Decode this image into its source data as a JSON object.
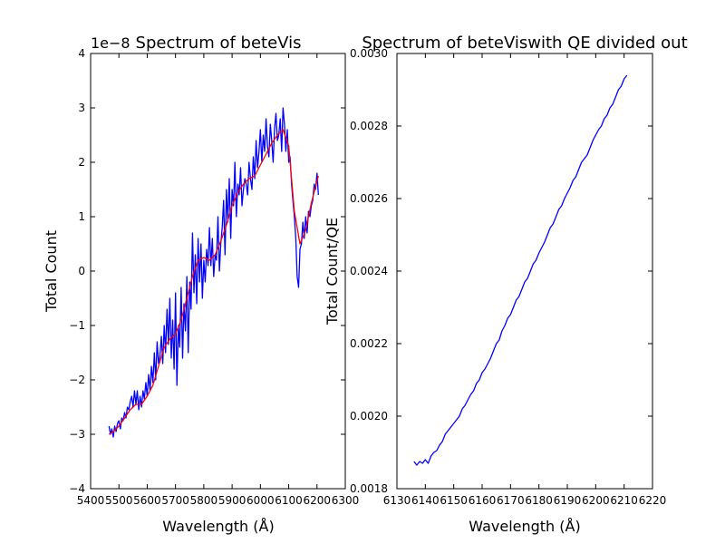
{
  "chart_data": [
    {
      "type": "line",
      "title": "Spectrum of beteVis",
      "xlabel": "Wavelength (Å)",
      "ylabel": "Total Count",
      "offset_label": "1e−8",
      "xlim": [
        5400,
        6300
      ],
      "ylim": [
        -4,
        4
      ],
      "x_ticks": [
        5400,
        5500,
        5600,
        5700,
        5800,
        5900,
        6000,
        6100,
        6200,
        6300
      ],
      "y_ticks": [
        -4,
        -3,
        -2,
        -1,
        0,
        1,
        2,
        3,
        4
      ],
      "y_tick_labels": [
        "−4",
        "−3",
        "−2",
        "−1",
        "0",
        "1",
        "2",
        "3",
        "4"
      ],
      "series": [
        {
          "color": "#0000ff",
          "x": [
            5465,
            5470,
            5475,
            5480,
            5485,
            5490,
            5495,
            5500,
            5505,
            5510,
            5515,
            5520,
            5525,
            5530,
            5535,
            5540,
            5545,
            5550,
            5555,
            5560,
            5565,
            5570,
            5575,
            5580,
            5585,
            5590,
            5595,
            5600,
            5605,
            5610,
            5615,
            5620,
            5625,
            5630,
            5635,
            5640,
            5645,
            5650,
            5655,
            5660,
            5665,
            5670,
            5675,
            5680,
            5685,
            5690,
            5695,
            5700,
            5705,
            5710,
            5715,
            5720,
            5725,
            5730,
            5735,
            5740,
            5745,
            5750,
            5755,
            5760,
            5765,
            5770,
            5775,
            5780,
            5785,
            5790,
            5795,
            5800,
            5805,
            5810,
            5815,
            5820,
            5825,
            5830,
            5835,
            5840,
            5845,
            5850,
            5855,
            5860,
            5865,
            5870,
            5875,
            5880,
            5885,
            5890,
            5895,
            5900,
            5905,
            5910,
            5915,
            5920,
            5925,
            5930,
            5935,
            5940,
            5945,
            5950,
            5955,
            5960,
            5965,
            5970,
            5975,
            5980,
            5985,
            5990,
            5995,
            6000,
            6005,
            6010,
            6015,
            6020,
            6025,
            6030,
            6035,
            6040,
            6045,
            6050,
            6055,
            6060,
            6065,
            6070,
            6075,
            6080,
            6085,
            6090,
            6095,
            6100,
            6105,
            6110,
            6115,
            6120,
            6125,
            6130,
            6135,
            6140,
            6145,
            6150,
            6155,
            6160,
            6165,
            6170,
            6175,
            6180,
            6185,
            6190,
            6195,
            6200,
            6205
          ],
          "values": [
            -2.85,
            -3.0,
            -2.9,
            -3.05,
            -2.85,
            -2.95,
            -2.8,
            -2.75,
            -2.9,
            -2.7,
            -2.75,
            -2.6,
            -2.7,
            -2.5,
            -2.55,
            -2.4,
            -2.3,
            -2.5,
            -2.2,
            -2.45,
            -2.2,
            -2.55,
            -2.3,
            -2.5,
            -2.2,
            -2.35,
            -2.05,
            -2.3,
            -1.9,
            -2.2,
            -1.75,
            -2.05,
            -1.5,
            -2.0,
            -1.3,
            -1.7,
            -1.55,
            -1.2,
            -1.7,
            -1.0,
            -1.5,
            -0.7,
            -1.35,
            -0.5,
            -1.6,
            -0.9,
            -1.8,
            -0.4,
            -2.1,
            -1.0,
            -1.4,
            -0.3,
            -1.6,
            -0.6,
            -1.1,
            -0.1,
            -1.5,
            -0.2,
            -0.7,
            0.7,
            -0.4,
            0.3,
            -0.6,
            0.6,
            -0.2,
            0.5,
            -0.5,
            0.2,
            -0.2,
            0.4,
            0.1,
            0.8,
            0.1,
            0.6,
            -0.1,
            0.3,
            0.2,
            1.0,
            0.0,
            0.5,
            0.8,
            1.3,
            0.3,
            1.5,
            0.9,
            1.7,
            0.6,
            1.5,
            1.2,
            2.0,
            1.0,
            1.6,
            1.4,
            1.9,
            1.2,
            1.5,
            1.7,
            1.6,
            1.4,
            2.0,
            1.7,
            1.5,
            2.1,
            1.7,
            2.4,
            1.9,
            2.2,
            2.6,
            2.0,
            2.5,
            2.2,
            2.8,
            2.3,
            2.1,
            2.7,
            2.4,
            2.0,
            2.6,
            2.9,
            2.4,
            2.5,
            2.8,
            2.2,
            3.0,
            2.7,
            2.2,
            2.6,
            2.0,
            2.1,
            1.6,
            1.3,
            1.0,
            0.6,
            -0.1,
            -0.3,
            0.4,
            0.5,
            0.9,
            0.6,
            1.0,
            0.7,
            1.1,
            1.0,
            1.2,
            1.3,
            1.6,
            1.5,
            1.8,
            1.4
          ]
        },
        {
          "color": "#ff0000",
          "x": [
            5465,
            5480,
            5500,
            5520,
            5540,
            5560,
            5580,
            5600,
            5620,
            5640,
            5660,
            5680,
            5700,
            5720,
            5740,
            5760,
            5780,
            5800,
            5820,
            5840,
            5860,
            5880,
            5900,
            5920,
            5940,
            5960,
            5980,
            6000,
            6020,
            6040,
            6060,
            6080,
            6100,
            6120,
            6140,
            6160,
            6180,
            6205
          ],
          "values": [
            -3.0,
            -2.95,
            -2.85,
            -2.7,
            -2.55,
            -2.45,
            -2.45,
            -2.3,
            -2.1,
            -1.75,
            -1.4,
            -1.25,
            -1.15,
            -0.9,
            -0.5,
            -0.1,
            0.2,
            0.25,
            0.2,
            0.3,
            0.55,
            0.85,
            1.2,
            1.45,
            1.6,
            1.7,
            1.75,
            1.95,
            2.15,
            2.35,
            2.5,
            2.6,
            2.3,
            1.1,
            0.5,
            0.75,
            1.25,
            1.75
          ]
        }
      ]
    },
    {
      "type": "line",
      "title": "Spectrum of beteViswith QE divided out",
      "xlabel": "Wavelength (Å)",
      "ylabel": "Total Count/QE",
      "xlim": [
        6130,
        6220
      ],
      "ylim": [
        0.0018,
        0.003
      ],
      "x_ticks": [
        6130,
        6140,
        6150,
        6160,
        6170,
        6180,
        6190,
        6200,
        6210,
        6220
      ],
      "y_ticks": [
        0.0018,
        0.002,
        0.0022,
        0.0024,
        0.0026,
        0.0028,
        0.003
      ],
      "y_tick_labels": [
        "0.0018",
        "0.0020",
        "0.0022",
        "0.0024",
        "0.0026",
        "0.0028",
        "0.0030"
      ],
      "series": [
        {
          "color": "#0000ff",
          "x": [
            6136,
            6137,
            6138,
            6139,
            6140,
            6141,
            6142,
            6143,
            6144,
            6145,
            6146,
            6147,
            6148,
            6149,
            6150,
            6151,
            6152,
            6153,
            6154,
            6155,
            6156,
            6157,
            6158,
            6159,
            6160,
            6161,
            6162,
            6163,
            6164,
            6165,
            6166,
            6167,
            6168,
            6169,
            6170,
            6171,
            6172,
            6173,
            6174,
            6175,
            6176,
            6177,
            6178,
            6179,
            6180,
            6181,
            6182,
            6183,
            6184,
            6185,
            6186,
            6187,
            6188,
            6189,
            6190,
            6191,
            6192,
            6193,
            6194,
            6195,
            6196,
            6197,
            6198,
            6199,
            6200,
            6201,
            6202,
            6203,
            6204,
            6205,
            6206,
            6207,
            6208,
            6209,
            6210,
            6211
          ],
          "values": [
            0.001875,
            0.001865,
            0.001875,
            0.00187,
            0.00188,
            0.00187,
            0.00189,
            0.0019,
            0.001905,
            0.00192,
            0.00193,
            0.00195,
            0.00196,
            0.00197,
            0.00198,
            0.00199,
            0.002,
            0.00202,
            0.00203,
            0.002045,
            0.00206,
            0.00207,
            0.00209,
            0.0021,
            0.00212,
            0.00213,
            0.002145,
            0.00216,
            0.00218,
            0.0022,
            0.00221,
            0.002235,
            0.00225,
            0.00227,
            0.00228,
            0.0023,
            0.00232,
            0.00233,
            0.00235,
            0.00237,
            0.00238,
            0.0024,
            0.00242,
            0.00243,
            0.00245,
            0.002465,
            0.00248,
            0.0025,
            0.00252,
            0.00253,
            0.00255,
            0.00257,
            0.00258,
            0.0026,
            0.002615,
            0.00263,
            0.00265,
            0.00266,
            0.00268,
            0.0027,
            0.00271,
            0.00272,
            0.00274,
            0.00276,
            0.002775,
            0.00279,
            0.0028,
            0.00282,
            0.00283,
            0.00285,
            0.00286,
            0.00288,
            0.0029,
            0.00291,
            0.00293,
            0.00294
          ]
        }
      ]
    }
  ]
}
